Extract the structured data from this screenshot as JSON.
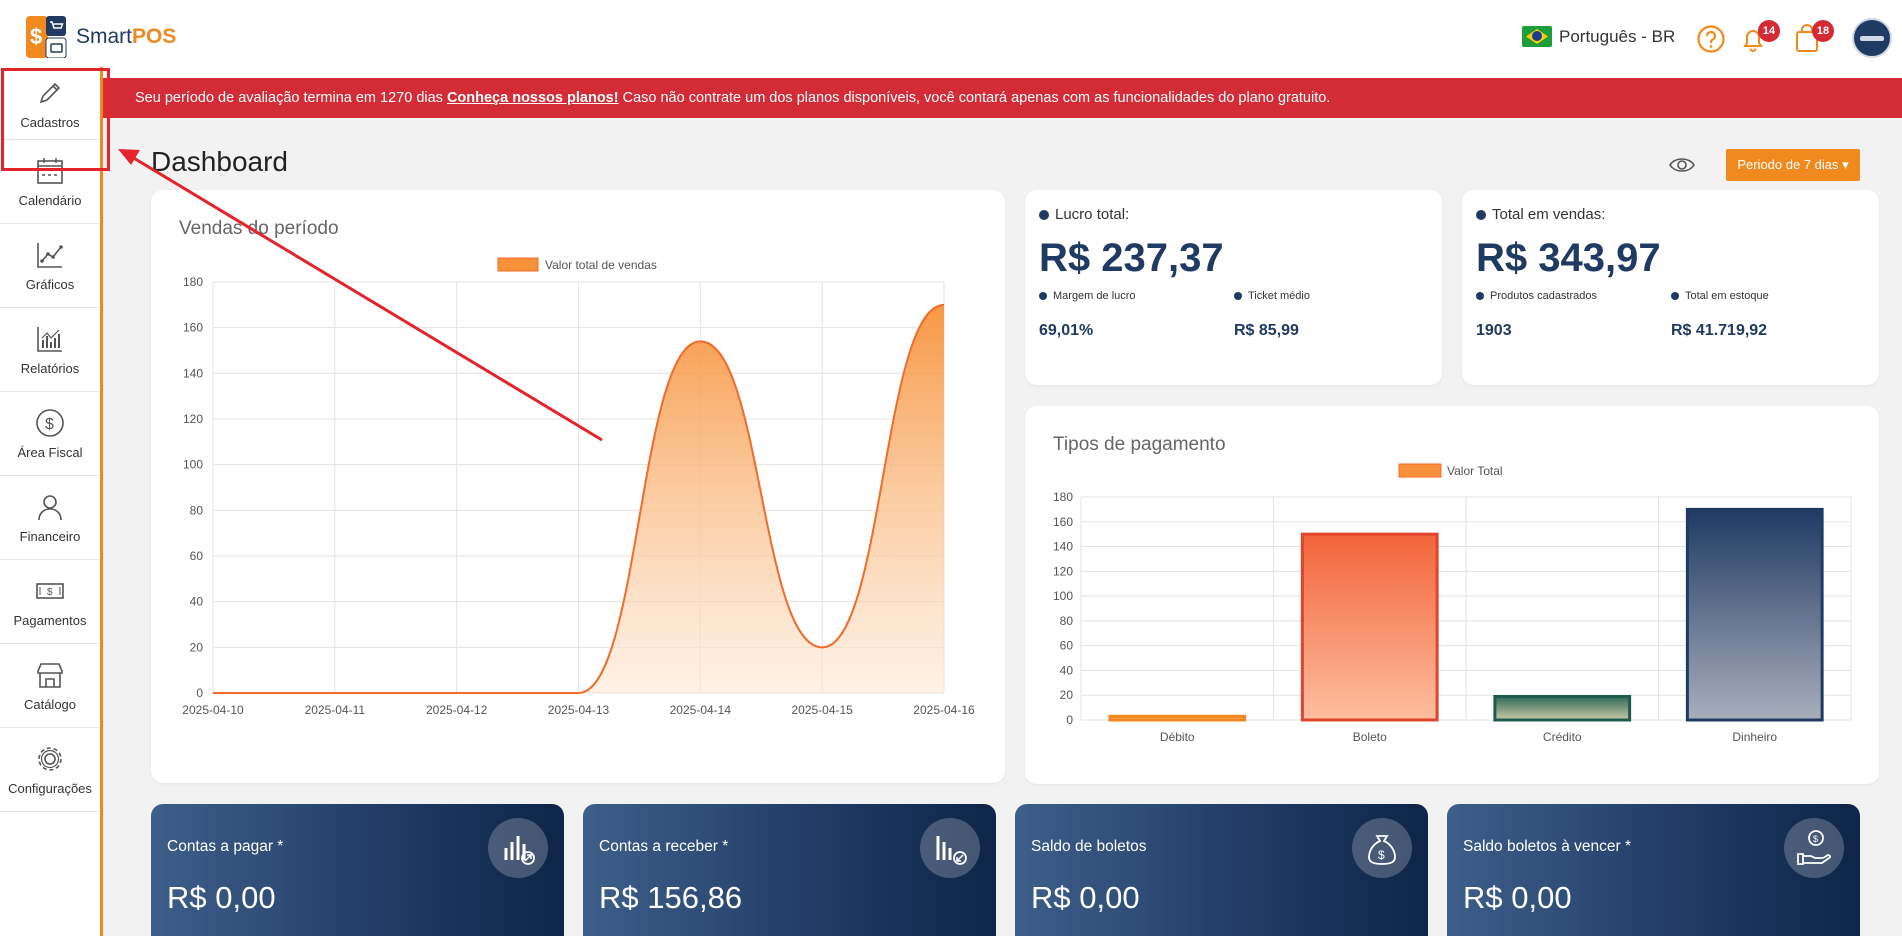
{
  "header": {
    "logo_text_a": "Smart",
    "logo_text_b": "POS",
    "language": "Português - BR",
    "notifications_count": "14",
    "cart_count": "18"
  },
  "sidebar": {
    "items": [
      {
        "label": "Cadastros",
        "icon": "pencil-icon"
      },
      {
        "label": "Calendário",
        "icon": "calendar-icon"
      },
      {
        "label": "Gráficos",
        "icon": "line-chart-icon"
      },
      {
        "label": "Relatórios",
        "icon": "bar-chart-icon"
      },
      {
        "label": "Área Fiscal",
        "icon": "dollar-circle-icon"
      },
      {
        "label": "Financeiro",
        "icon": "person-icon"
      },
      {
        "label": "Pagamentos",
        "icon": "banknote-icon"
      },
      {
        "label": "Catálogo",
        "icon": "store-icon"
      },
      {
        "label": "Configurações",
        "icon": "gear-icon"
      }
    ]
  },
  "banner": {
    "text_before": "Seu período de avaliação termina em 1270 dias ",
    "link": "Conheça nossos planos!",
    "text_after": " Caso não contrate um dos planos disponíveis, você contará apenas com as funcionalidades do plano gratuito."
  },
  "page": {
    "title": "Dashboard",
    "period_button": "Periodo de 7 dias ▾"
  },
  "stats": {
    "profit": {
      "label": "Lucro total:",
      "value": "R$ 237,37",
      "sub1_label": "Margem de lucro",
      "sub1_value": "69,01%",
      "sub2_label": "Ticket médio",
      "sub2_value": "R$ 85,99"
    },
    "sales": {
      "label": "Total em vendas:",
      "value": "R$ 343,97",
      "sub1_label": "Produtos cadastrados",
      "sub1_value": "1903",
      "sub2_label": "Total em estoque",
      "sub2_value": "R$ 41.719,92"
    }
  },
  "bottom_cards": [
    {
      "title": "Contas a pagar *",
      "value": "R$ 0,00"
    },
    {
      "title": "Contas a receber *",
      "value": "R$ 156,86"
    },
    {
      "title": "Saldo de boletos",
      "value": "R$ 0,00"
    },
    {
      "title": "Saldo boletos à vencer *",
      "value": "R$ 0,00"
    }
  ],
  "colors": {
    "accent": "#f08a1e",
    "navy": "#1f3a63",
    "banner": "#d42c37"
  },
  "chart_data": [
    {
      "type": "area",
      "title": "Vendas do período",
      "legend": "Valor total de vendas",
      "x": [
        "2025-04-10",
        "2025-04-11",
        "2025-04-12",
        "2025-04-13",
        "2025-04-14",
        "2025-04-15",
        "2025-04-16"
      ],
      "values": [
        0,
        0,
        0,
        0,
        154,
        20,
        170
      ],
      "ylim": [
        0,
        180
      ],
      "yticks": [
        0,
        20,
        40,
        60,
        80,
        100,
        120,
        140,
        160,
        180
      ],
      "grid": true,
      "legend_position": "top"
    },
    {
      "type": "bar",
      "title": "Tipos de pagamento",
      "legend": "Valor Total",
      "categories": [
        "Débito",
        "Boleto",
        "Crédito",
        "Dinheiro"
      ],
      "values": [
        3,
        150,
        19,
        170
      ],
      "ylim": [
        0,
        180
      ],
      "yticks": [
        0,
        20,
        40,
        60,
        80,
        100,
        120,
        140,
        160,
        180
      ],
      "grid": true,
      "legend_position": "top"
    }
  ]
}
